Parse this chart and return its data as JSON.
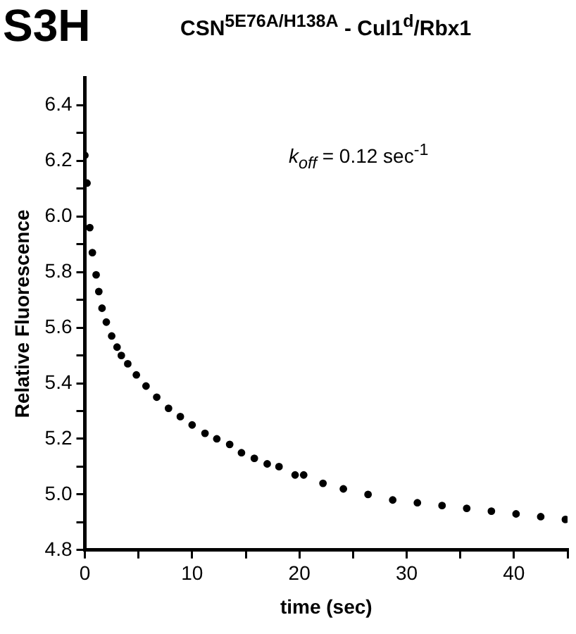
{
  "chart_data": {
    "type": "scatter",
    "title": "CSN$^{5E76A/H138A}$ - Cul1$^{d}$/Rbx1",
    "xlabel": "time (sec)",
    "ylabel": "Relative Fluorescence",
    "annotations": [
      "S3H",
      "k$_{off}$ = 0.12 sec$^{-1}$"
    ],
    "series": [
      {
        "color": "#000000",
        "x": [
          0,
          0.2,
          0.46,
          0.7,
          1.05,
          1.3,
          1.6,
          2.0,
          2.5,
          3.0,
          3.4,
          4.0,
          4.8,
          5.7,
          6.7,
          7.8,
          8.9,
          10,
          11.2,
          12.3,
          13.5,
          14.6,
          15.8,
          17,
          18.1,
          19.6,
          20.4,
          22.2,
          24.1,
          26.4,
          28.7,
          31,
          33.3,
          35.6,
          37.9,
          40.2,
          42.5,
          44.8
        ],
        "values": [
          6.22,
          6.12,
          5.96,
          5.87,
          5.79,
          5.73,
          5.67,
          5.62,
          5.57,
          5.53,
          5.5,
          5.47,
          5.43,
          5.39,
          5.35,
          5.31,
          5.28,
          5.25,
          5.22,
          5.2,
          5.18,
          5.15,
          5.13,
          5.11,
          5.1,
          5.07,
          5.07,
          5.04,
          5.02,
          5.0,
          4.98,
          4.97,
          4.96,
          4.95,
          4.94,
          4.93,
          4.92,
          4.91
        ]
      }
    ],
    "xlim": [
      0,
      45
    ],
    "ylim": [
      4.8,
      6.5
    ],
    "xticks": [
      0,
      {
        "value": 5,
        "label": null
      },
      10,
      {
        "value": 15,
        "label": null
      },
      20,
      {
        "value": 25,
        "label": null
      },
      30,
      {
        "value": 35,
        "label": null
      },
      40,
      {
        "value": 45,
        "label": null
      }
    ],
    "yticks": [
      4.8,
      {
        "value": 4.9,
        "label": null
      },
      "5.0",
      {
        "value": 5.1,
        "label": null
      },
      5.2,
      {
        "value": 5.3,
        "label": null
      },
      5.4,
      {
        "value": 5.5,
        "label": null
      },
      5.6,
      {
        "value": 5.7,
        "label": null
      },
      5.8,
      {
        "value": 5.9,
        "label": null
      },
      "6.0",
      {
        "value": 6.1,
        "label": null
      },
      6.2,
      {
        "value": 6.3,
        "label": null
      },
      6.4
    ],
    "grid": false,
    "legend": false,
    "marker": "circle"
  }
}
